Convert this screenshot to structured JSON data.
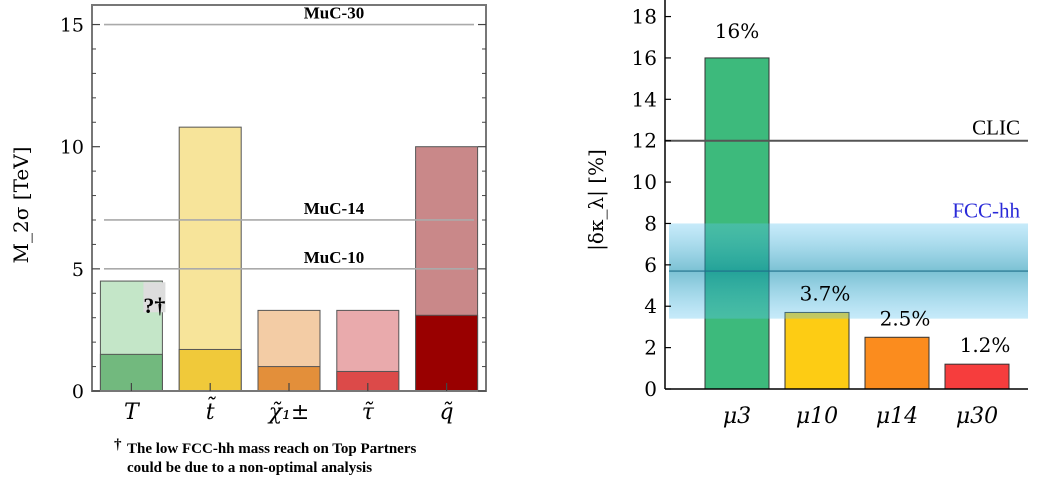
{
  "chart_data": [
    {
      "type": "bar",
      "ylabel": "M_2σ [TeV]",
      "ylim": [
        0,
        15.8
      ],
      "yticks": [
        0,
        5,
        10,
        15
      ],
      "grid": false,
      "categories": [
        "T",
        "t̃",
        "χ̃₁±",
        "τ̃",
        "q̃"
      ],
      "series": [
        {
          "values": [
            4.5,
            10.8,
            3.3,
            3.3,
            10.0
          ],
          "colors": [
            "#c4e6c8",
            "#f7e49a",
            "#f3ccA5",
            "#e9aaac",
            "#c98889"
          ]
        },
        {
          "values": [
            1.5,
            1.7,
            1.0,
            0.8,
            3.1
          ],
          "colors": [
            "#72b97e",
            "#f0c93a",
            "#e38f3a",
            "#dc4a49",
            "#990000"
          ]
        }
      ],
      "reference_lines": [
        {
          "label": "MuC-30",
          "value": 15
        },
        {
          "label": "MuC-14",
          "value": 7
        },
        {
          "label": "MuC-10",
          "value": 5
        }
      ],
      "annotations": [
        {
          "text": "?†",
          "category": "T"
        }
      ],
      "footnote": {
        "dagger": "†",
        "line1": "The low FCC-hh mass reach on Top Partners",
        "line2": "could be due to a non-optimal analysis"
      }
    },
    {
      "type": "bar",
      "ylabel": "|δκ_λ| [%]",
      "ylim": [
        0,
        18.8
      ],
      "yticks": [
        0,
        2,
        4,
        6,
        8,
        10,
        12,
        14,
        16,
        18
      ],
      "grid": false,
      "categories": [
        "μ3",
        "μ10",
        "μ14",
        "μ30"
      ],
      "values": [
        16,
        3.7,
        2.5,
        1.2
      ],
      "data_labels": [
        "16%",
        "3.7%",
        "2.5%",
        "1.2%"
      ],
      "colors": [
        "#3dba7c",
        "#fdcc14",
        "#fb8c1e",
        "#f63d3d"
      ],
      "reference_lines": [
        {
          "label": "CLIC",
          "value": 12
        }
      ],
      "bands": [
        {
          "label": "FCC-hh",
          "low": 3.4,
          "high": 8.0,
          "center": 5.7,
          "color": "#5fc4f0"
        }
      ]
    }
  ]
}
